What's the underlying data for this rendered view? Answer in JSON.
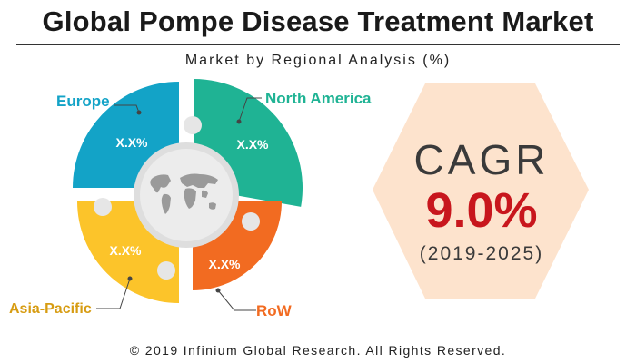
{
  "header": {
    "title": "Global Pompe Disease Treatment Market",
    "subtitle": "Market by Regional Analysis (%)"
  },
  "chart_data": {
    "type": "pie",
    "categories": [
      "North America",
      "RoW",
      "Asia-Pacific",
      "Europe"
    ],
    "value_labels": [
      "X.X%",
      "X.X%",
      "X.X%",
      "X.X%"
    ],
    "colors": [
      "#1fb394",
      "#f26b21",
      "#fcc42a",
      "#13a3c7"
    ],
    "center_icon": "world-map-icon"
  },
  "cagr": {
    "label": "CAGR",
    "value": "9.0%",
    "period": "(2019-2025)",
    "hex_color": "#fde3cd"
  },
  "footer": {
    "copyright": "© 2019 Infinium Global Research. All Rights Reserved."
  }
}
